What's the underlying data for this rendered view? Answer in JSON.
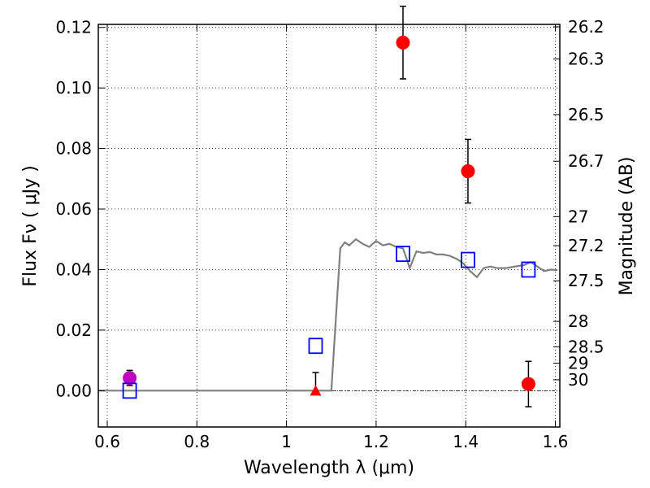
{
  "chart_data": {
    "type": "scatter",
    "xlabel": "Wavelength  λ (μm)",
    "ylabel_left": "Flux  Fν  ( μJy )",
    "ylabel_right": "Magnitude (AB)",
    "xlim": [
      0.58,
      1.61
    ],
    "ylim": [
      -0.012,
      0.121
    ],
    "grid": true,
    "x_ticks": [
      {
        "value": 0.6,
        "label": "0.6"
      },
      {
        "value": 0.8,
        "label": "0.8"
      },
      {
        "value": 1.0,
        "label": "1"
      },
      {
        "value": 1.2,
        "label": "1.2"
      },
      {
        "value": 1.4,
        "label": "1.4"
      },
      {
        "value": 1.6,
        "label": "1.6"
      }
    ],
    "y_ticks": [
      {
        "value": 0.0,
        "label": "0.00"
      },
      {
        "value": 0.02,
        "label": "0.02"
      },
      {
        "value": 0.04,
        "label": "0.04"
      },
      {
        "value": 0.06,
        "label": "0.06"
      },
      {
        "value": 0.08,
        "label": "0.08"
      },
      {
        "value": 0.1,
        "label": "0.10"
      },
      {
        "value": 0.12,
        "label": "0.12"
      }
    ],
    "right_ticks": [
      {
        "label": "26.2",
        "flux": 0.1202
      },
      {
        "label": "26.3",
        "flux": 0.1096
      },
      {
        "label": "26.5",
        "flux": 0.0912
      },
      {
        "label": "26.7",
        "flux": 0.0758
      },
      {
        "label": "27",
        "flux": 0.0575
      },
      {
        "label": "27.2",
        "flux": 0.0479
      },
      {
        "label": "27.5",
        "flux": 0.0363
      },
      {
        "label": "28",
        "flux": 0.0229
      },
      {
        "label": "28.5",
        "flux": 0.0145
      },
      {
        "label": "29",
        "flux": 0.0091
      },
      {
        "label": "30",
        "flux": 0.0036
      }
    ],
    "series": [
      {
        "kind": "line",
        "color": "#808080",
        "x": [
          0.58,
          0.94,
          0.98,
          1.02,
          1.06,
          1.09,
          1.1,
          1.12,
          1.13,
          1.14,
          1.155,
          1.17,
          1.185,
          1.2,
          1.215,
          1.23,
          1.245,
          1.26,
          1.275,
          1.29,
          1.305,
          1.32,
          1.335,
          1.35,
          1.365,
          1.38,
          1.395,
          1.41,
          1.425,
          1.44,
          1.455,
          1.47,
          1.49,
          1.51,
          1.53,
          1.545,
          1.56,
          1.575,
          1.59,
          1.605
        ],
        "y": [
          0.0,
          0.0,
          0.0,
          0.0,
          0.0,
          0.0,
          0.0,
          0.047,
          0.049,
          0.048,
          0.05,
          0.0485,
          0.0475,
          0.0495,
          0.048,
          0.0485,
          0.0475,
          0.047,
          0.0405,
          0.046,
          0.0455,
          0.0458,
          0.045,
          0.045,
          0.0445,
          0.0435,
          0.042,
          0.0395,
          0.0375,
          0.0405,
          0.041,
          0.0405,
          0.0405,
          0.041,
          0.0415,
          0.0425,
          0.041,
          0.0395,
          0.04,
          0.0398
        ]
      },
      {
        "kind": "scatter",
        "marker": "circle",
        "color": "#ff0000",
        "points": [
          {
            "x": 1.26,
            "y": 0.115,
            "err": 0.012
          },
          {
            "x": 1.405,
            "y": 0.0725,
            "err": 0.0105
          },
          {
            "x": 1.54,
            "y": 0.0022,
            "err": 0.0075
          }
        ]
      },
      {
        "kind": "scatter",
        "marker": "circle",
        "color": "#c000c0",
        "points": [
          {
            "x": 0.65,
            "y": 0.0042,
            "err": 0.0025
          }
        ]
      },
      {
        "kind": "scatter",
        "marker": "triangle",
        "color": "#ff0000",
        "points": [
          {
            "x": 1.065,
            "y": 0.0,
            "err": 0.006
          }
        ]
      },
      {
        "kind": "scatter",
        "marker": "open-square",
        "color": "#0000ff",
        "points": [
          {
            "x": 0.65,
            "y": 0.0
          },
          {
            "x": 1.065,
            "y": 0.0148
          },
          {
            "x": 1.26,
            "y": 0.0452
          },
          {
            "x": 1.405,
            "y": 0.0432
          },
          {
            "x": 1.54,
            "y": 0.04
          }
        ]
      }
    ]
  }
}
